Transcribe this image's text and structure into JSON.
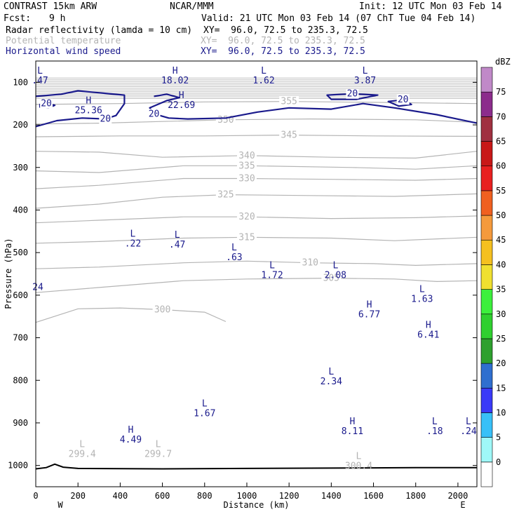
{
  "header": {
    "title_left": "CONTRAST 15km ARW",
    "title_center": "NCAR/MMM",
    "init": "Init: 12 UTC Mon 03 Feb 14",
    "fcst_label": "Fcst:",
    "fcst_value": "9 h",
    "valid": "Valid: 21 UTC Mon 03 Feb 14 (07 ChT Tue 04 Feb 14)",
    "fields": [
      {
        "name": "Radar reflectivity (lamda = 10 cm)",
        "xy": "XY=  96.0, 72.5 to 235.3, 72.5",
        "color": "#000000"
      },
      {
        "name": "Potential temperature",
        "xy": "XY=  96.0, 72.5 to 235.3, 72.5",
        "color": "#b4b4b4"
      },
      {
        "name": "Horizontal wind speed",
        "xy": "XY=  96.0, 72.5 to 235.3, 72.5",
        "color": "#1a1a8c"
      }
    ]
  },
  "chart_data": {
    "type": "contour cross-section",
    "xlabel": "Distance (km)",
    "ylabel": "Pressure (hPa)",
    "xlim": [
      0,
      2090
    ],
    "ylim": [
      1050,
      50
    ],
    "x_ticks": [
      "0",
      "200",
      "400",
      "600",
      "800",
      "1000",
      "1200",
      "1400",
      "1600",
      "1800",
      "2000"
    ],
    "x_tick_values": [
      0,
      200,
      400,
      600,
      800,
      1000,
      1200,
      1400,
      1600,
      1800,
      2000
    ],
    "y_ticks": [
      "100",
      "200",
      "300",
      "400",
      "500",
      "600",
      "700",
      "800",
      "900",
      "1000"
    ],
    "y_tick_values": [
      100,
      200,
      300,
      400,
      500,
      600,
      700,
      800,
      900,
      1000
    ],
    "endpoint_left": "W",
    "endpoint_right": "E",
    "theta_isentropes": [
      {
        "label": "355",
        "points": [
          [
            0,
            152
          ],
          [
            400,
            150
          ],
          [
            800,
            146
          ],
          [
            1200,
            145
          ],
          [
            1600,
            147
          ],
          [
            2090,
            150
          ]
        ]
      },
      {
        "label": "350",
        "points": [
          [
            0,
            198
          ],
          [
            300,
            196
          ],
          [
            600,
            192
          ],
          [
            900,
            188
          ],
          [
            1300,
            186
          ],
          [
            1800,
            188
          ],
          [
            2090,
            194
          ]
        ]
      },
      {
        "label": "345",
        "points": [
          [
            0,
            228
          ],
          [
            400,
            226
          ],
          [
            800,
            226
          ],
          [
            1200,
            224
          ],
          [
            1600,
            226
          ],
          [
            2090,
            227
          ]
        ]
      },
      {
        "label": "340",
        "points": [
          [
            0,
            262
          ],
          [
            300,
            264
          ],
          [
            600,
            276
          ],
          [
            1000,
            272
          ],
          [
            1400,
            276
          ],
          [
            1800,
            278
          ],
          [
            2090,
            262
          ]
        ]
      },
      {
        "label": "335",
        "points": [
          [
            0,
            308
          ],
          [
            300,
            312
          ],
          [
            700,
            296
          ],
          [
            1000,
            296
          ],
          [
            1500,
            300
          ],
          [
            1800,
            304
          ],
          [
            2090,
            296
          ]
        ]
      },
      {
        "label": "330",
        "points": [
          [
            0,
            350
          ],
          [
            300,
            342
          ],
          [
            700,
            326
          ],
          [
            1000,
            326
          ],
          [
            1400,
            328
          ],
          [
            1800,
            330
          ],
          [
            2090,
            326
          ]
        ]
      },
      {
        "label": "325",
        "points": [
          [
            0,
            396
          ],
          [
            300,
            386
          ],
          [
            600,
            370
          ],
          [
            900,
            364
          ],
          [
            1300,
            366
          ],
          [
            1700,
            368
          ],
          [
            2090,
            362
          ]
        ]
      },
      {
        "label": "320",
        "points": [
          [
            0,
            430
          ],
          [
            300,
            424
          ],
          [
            700,
            416
          ],
          [
            1000,
            416
          ],
          [
            1400,
            420
          ],
          [
            1800,
            418
          ],
          [
            2090,
            414
          ]
        ]
      },
      {
        "label": "315",
        "points": [
          [
            0,
            478
          ],
          [
            300,
            474
          ],
          [
            700,
            466
          ],
          [
            1000,
            464
          ],
          [
            1400,
            466
          ],
          [
            1700,
            472
          ],
          [
            2090,
            464
          ]
        ]
      },
      {
        "label": "310",
        "points": [
          [
            0,
            538
          ],
          [
            300,
            534
          ],
          [
            700,
            524
          ],
          [
            1000,
            520
          ],
          [
            1300,
            524
          ],
          [
            1600,
            526
          ],
          [
            1800,
            530
          ],
          [
            2090,
            526
          ]
        ]
      },
      {
        "label": "305",
        "points": [
          [
            0,
            594
          ],
          [
            300,
            582
          ],
          [
            700,
            566
          ],
          [
            1000,
            562
          ],
          [
            1400,
            560
          ],
          [
            1700,
            562
          ],
          [
            1900,
            568
          ],
          [
            2090,
            566
          ]
        ]
      },
      {
        "label": "300",
        "points": [
          [
            0,
            664
          ],
          [
            200,
            632
          ],
          [
            400,
            630
          ],
          [
            600,
            634
          ],
          [
            800,
            640
          ],
          [
            900,
            662
          ]
        ]
      }
    ],
    "wind_20_contours": [
      {
        "closed": false,
        "points": [
          [
            0,
            204
          ],
          [
            100,
            190
          ],
          [
            220,
            184
          ],
          [
            330,
            186
          ],
          [
            380,
            178
          ],
          [
            420,
            150
          ],
          [
            420,
            130
          ],
          [
            330,
            126
          ],
          [
            200,
            120
          ],
          [
            120,
            128
          ],
          [
            0,
            133
          ]
        ]
      },
      {
        "closed": false,
        "points": [
          [
            560,
            133
          ],
          [
            620,
            128
          ],
          [
            680,
            136
          ],
          [
            620,
            143
          ],
          [
            540,
            160
          ],
          [
            560,
            174
          ],
          [
            630,
            184
          ],
          [
            720,
            186
          ],
          [
            900,
            184
          ],
          [
            1050,
            170
          ],
          [
            1200,
            160
          ],
          [
            1400,
            163
          ],
          [
            1550,
            150
          ],
          [
            1700,
            160
          ],
          [
            1900,
            176
          ],
          [
            2090,
            196
          ]
        ]
      },
      {
        "closed": true,
        "points": [
          [
            20,
            152
          ],
          [
            50,
            150
          ],
          [
            90,
            154
          ],
          [
            60,
            160
          ],
          [
            20,
            158
          ]
        ]
      },
      {
        "closed": true,
        "points": [
          [
            1380,
            130
          ],
          [
            1500,
            127
          ],
          [
            1620,
            130
          ],
          [
            1520,
            140
          ],
          [
            1400,
            140
          ]
        ]
      },
      {
        "closed": true,
        "points": [
          [
            1670,
            145
          ],
          [
            1740,
            141
          ],
          [
            1780,
            152
          ],
          [
            1720,
            156
          ]
        ]
      }
    ],
    "wind_labels": [
      "20",
      "20",
      "20",
      "20",
      "20"
    ],
    "wind_extrema": [
      {
        "letter": "L",
        "value": ".47",
        "x": 20,
        "y": 80
      },
      {
        "letter": "H",
        "value": "18.02",
        "x": 660,
        "y": 80
      },
      {
        "letter": "L",
        "value": "1.62",
        "x": 1080,
        "y": 80
      },
      {
        "letter": "L",
        "value": "3.87",
        "x": 1560,
        "y": 80
      },
      {
        "letter": "H",
        "value": "25.36",
        "x": 250,
        "y": 150
      },
      {
        "letter": "H",
        "value": "22.69",
        "x": 690,
        "y": 137
      },
      {
        "letter": "L",
        "value": ".22",
        "x": 460,
        "y": 463
      },
      {
        "letter": "L",
        "value": ".47",
        "x": 670,
        "y": 465
      },
      {
        "letter": "L",
        "value": ".63",
        "x": 940,
        "y": 495
      },
      {
        "letter": "L",
        "value": "1.72",
        "x": 1120,
        "y": 537
      },
      {
        "letter": "L",
        "value": "2.08",
        "x": 1420,
        "y": 537
      },
      {
        "letter": "L",
        "value": "1.63",
        "x": 1830,
        "y": 593
      },
      {
        "letter": "H",
        "value": "6.77",
        "x": 1580,
        "y": 629
      },
      {
        "letter": "H",
        "value": "6.41",
        "x": 1860,
        "y": 677
      },
      {
        "letter": "L",
        "value": "2.34",
        "x": 1400,
        "y": 786
      },
      {
        "letter": "L",
        "value": "1.67",
        "x": 800,
        "y": 861
      },
      {
        "letter": "H",
        "value": "8.11",
        "x": 1500,
        "y": 903
      },
      {
        "letter": "L",
        "value": ".18",
        "x": 1890,
        "y": 903
      },
      {
        "letter": "L",
        "value": ".24",
        "x": 2050,
        "y": 903
      },
      {
        "letter": "H",
        "value": "4.49",
        "x": 450,
        "y": 923
      },
      {
        "letter": "",
        "value": "24",
        "x": 10,
        "y": 565
      }
    ],
    "theta_extrema": [
      {
        "letter": "L",
        "value": "299.4",
        "x": 220,
        "y": 977
      },
      {
        "letter": "L",
        "value": "299.7",
        "x": 580,
        "y": 977
      },
      {
        "letter": "L",
        "value": "300.4",
        "x": 1530,
        "y": 1005
      }
    ],
    "terrain": [
      [
        0,
        1008
      ],
      [
        50,
        1005
      ],
      [
        90,
        997
      ],
      [
        130,
        1004
      ],
      [
        200,
        1007
      ],
      [
        600,
        1008
      ],
      [
        1000,
        1007
      ],
      [
        1500,
        1006
      ],
      [
        1800,
        1005
      ],
      [
        2090,
        1005
      ]
    ],
    "reflectivity_colorbar": {
      "unit": "dBZ",
      "labels": [
        "0",
        "5",
        "10",
        "15",
        "20",
        "25",
        "30",
        "35",
        "40",
        "45",
        "50",
        "55",
        "60",
        "65",
        "70",
        "75"
      ],
      "colors": [
        "#ffffff",
        "#9ff8f8",
        "#38c0f8",
        "#3a3af8",
        "#2f6fcf",
        "#2ea02e",
        "#2fd02f",
        "#3cf03c",
        "#f0e030",
        "#f5c020",
        "#f59a3c",
        "#f06020",
        "#e82020",
        "#c81818",
        "#a03040",
        "#8c2c8c",
        "#c089c8"
      ]
    }
  }
}
